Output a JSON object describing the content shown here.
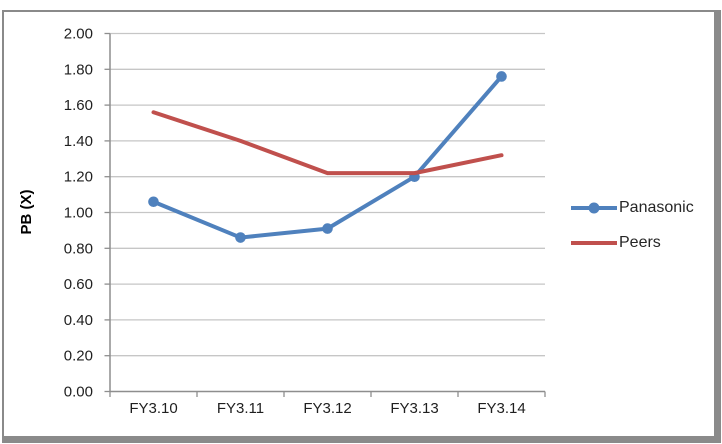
{
  "colors": {
    "frame_border": "#8A8A8A",
    "gridline": "#C6C6C6",
    "axis_line": "#8E8E8E",
    "text": "#1F1F1F",
    "legend_text": "#262626"
  },
  "chart_data": {
    "type": "line",
    "title": "",
    "categories": [
      "FY3.10",
      "FY3.11",
      "FY3.12",
      "FY3.13",
      "FY3.14"
    ],
    "series": [
      {
        "name": "Panasonic",
        "color": "#4F81BD",
        "marker": "circle",
        "values": [
          1.06,
          0.86,
          0.91,
          1.2,
          1.76
        ]
      },
      {
        "name": "Peers",
        "color": "#C0504D",
        "marker": "none",
        "values": [
          1.56,
          1.4,
          1.22,
          1.22,
          1.32
        ]
      }
    ],
    "xlabel": "",
    "ylabel": "PB (X)",
    "ylim": [
      0.0,
      2.0
    ],
    "ytick_step": 0.2,
    "ytick_labels": [
      "0.00",
      "0.20",
      "0.40",
      "0.60",
      "0.80",
      "1.00",
      "1.20",
      "1.40",
      "1.60",
      "1.80",
      "2.00"
    ],
    "grid": true,
    "legend_position": "right"
  }
}
